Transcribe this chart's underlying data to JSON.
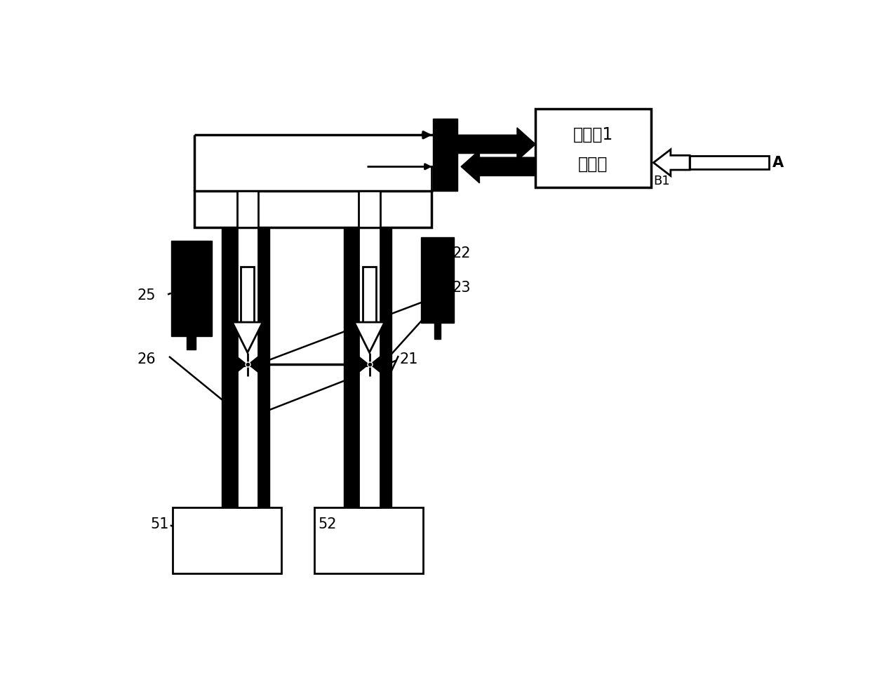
{
  "bg": "#ffffff",
  "ctrl_text1": "控制刨1",
  "ctrl_text2": "显示屏",
  "label_A": "A",
  "label_B1": "B1",
  "labels": [
    "22",
    "23",
    "25",
    "26",
    "21",
    "51",
    "52"
  ],
  "fs_label": 15,
  "fs_ctrl": 17
}
